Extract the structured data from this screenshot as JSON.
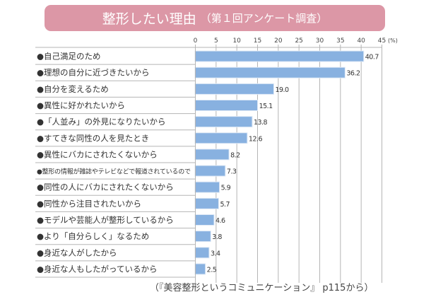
{
  "chart_data": {
    "type": "bar",
    "orientation": "horizontal",
    "title": "整形したい理由",
    "subtitle": "（第１回アンケート調査）",
    "xlabel": "",
    "ylabel": "",
    "unit_label": "(%)",
    "xlim": [
      0,
      45
    ],
    "xticks": [
      "0",
      "5",
      "10",
      "15",
      "20",
      "25",
      "30",
      "35",
      "40",
      "45"
    ],
    "grid": true,
    "categories": [
      "●自己満足のため",
      "●理想の自分に近づきたいから",
      "●自分を変えるため",
      "●異性に好かれたいから",
      "●「人並み」の外見になりたいから",
      "●すてきな同性の人を見たとき",
      "●異性にバカにされたくないから",
      "●整形の情報が雑誌やテレビなどで報道されているので",
      "●同性の人にバカにされたくないから",
      "●同性から注目されたいから",
      "●モデルや芸能人が整形しているから",
      "●より「自分らしく」なるため",
      "●身近な人がしたから",
      "●身近な人もしたがっているから"
    ],
    "values": [
      40.7,
      36.2,
      19.0,
      15.1,
      13.8,
      12.6,
      8.2,
      7.3,
      5.9,
      5.7,
      4.6,
      3.8,
      3.4,
      2.5
    ],
    "value_labels": [
      "40.7",
      "36.2",
      "19.0",
      "15.1",
      "13.8",
      "12.6",
      "8.2",
      "7.3",
      "5.9",
      "5.7",
      "4.6",
      "3.8",
      "3.4",
      "2.5"
    ],
    "colors": {
      "bar": "#88b1e0",
      "bar_edge": "#dfe9f6",
      "grid": "#b5b5b5",
      "title_bg": "#dc97a6",
      "title_text": "#ffffff"
    }
  },
  "footer": {
    "source": "（『美容整形というコミュニケーション』 p115から）"
  }
}
